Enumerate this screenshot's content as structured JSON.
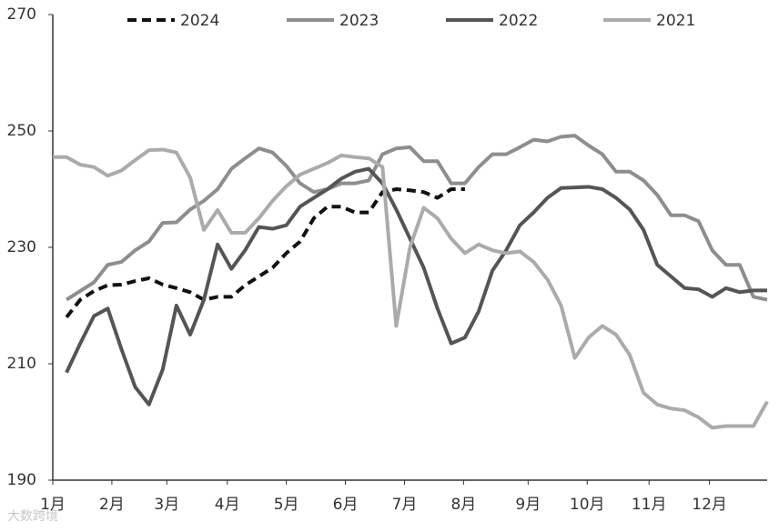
{
  "chart_data": {
    "type": "line",
    "x": [
      0,
      1,
      2,
      3,
      4,
      5,
      6,
      7,
      8,
      9,
      10,
      11,
      12,
      13,
      14,
      15,
      16,
      17,
      18,
      19,
      20,
      21,
      22,
      23,
      24,
      25,
      26,
      27,
      28,
      29,
      30,
      31,
      32,
      33,
      34,
      35,
      36,
      37,
      38,
      39,
      40,
      41,
      42,
      43,
      44,
      45,
      46,
      47,
      48,
      49,
      50,
      51,
      52
    ],
    "xlim": [
      0,
      52
    ],
    "xticks": [
      {
        "value": 0,
        "label": "1月"
      },
      {
        "value": 4.3,
        "label": "2月"
      },
      {
        "value": 8.3,
        "label": "3月"
      },
      {
        "value": 12.7,
        "label": "4月"
      },
      {
        "value": 17,
        "label": "5月"
      },
      {
        "value": 21.3,
        "label": "6月"
      },
      {
        "value": 25.6,
        "label": "7月"
      },
      {
        "value": 29.9,
        "label": "8月"
      },
      {
        "value": 34.6,
        "label": "9月"
      },
      {
        "value": 38.9,
        "label": "10月"
      },
      {
        "value": 43.4,
        "label": "11月"
      },
      {
        "value": 47.8,
        "label": "12月"
      }
    ],
    "ylim": [
      190,
      270
    ],
    "yticks": [
      190,
      210,
      230,
      250,
      270
    ],
    "legend": "top",
    "watermark": "大数跨境",
    "series": [
      {
        "name": "2024",
        "color": "#111111",
        "dashed": true,
        "values": [
          null,
          218,
          221,
          222.5,
          223.5,
          223.6,
          224.2,
          224.7,
          223.6,
          223,
          222.3,
          221,
          221.5,
          221.5,
          223.5,
          225,
          226.5,
          229,
          231,
          235,
          237,
          237,
          236,
          236,
          239.5,
          240,
          239.8,
          239.5,
          238.5,
          240,
          240,
          null,
          null,
          null,
          null,
          null,
          null,
          null,
          null,
          null,
          null,
          null,
          null,
          null,
          null,
          null,
          null,
          null,
          null,
          null,
          null,
          null,
          null
        ]
      },
      {
        "name": "2023",
        "color": "#8e8e8e",
        "dashed": false,
        "values": [
          null,
          221,
          222.5,
          224,
          227,
          227.5,
          229.5,
          231,
          234.2,
          234.3,
          236.5,
          238,
          240,
          243.5,
          245.3,
          247,
          246.3,
          244,
          241,
          239.5,
          240,
          241,
          241,
          241.5,
          246,
          247,
          247.2,
          244.8,
          244.8,
          241,
          241,
          243.8,
          246,
          246,
          247.2,
          248.5,
          248.2,
          249,
          249.2,
          247.5,
          246,
          243,
          243,
          241.5,
          239,
          235.5,
          235.5,
          234.5,
          229.5,
          227,
          227,
          221.5,
          221
        ]
      },
      {
        "name": "2022",
        "color": "#555555",
        "dashed": false,
        "values": [
          null,
          208.5,
          213.5,
          218.2,
          219.5,
          212.5,
          206,
          203,
          209,
          220,
          215,
          221,
          230.5,
          226.3,
          229.5,
          233.5,
          233.2,
          233.8,
          237,
          238.5,
          240,
          241.8,
          243,
          243.5,
          241,
          236.5,
          231.5,
          226.5,
          219.5,
          213.5,
          214.5,
          219,
          226,
          229.5,
          233.8,
          236,
          238.5,
          240.2,
          240.3,
          240.4,
          240,
          238.5,
          236.5,
          233,
          227,
          225,
          223,
          222.8,
          221.5,
          223,
          222.3,
          222.6,
          222.6
        ]
      },
      {
        "name": "2021",
        "color": "#ababab",
        "dashed": false,
        "values": [
          245.5,
          245.5,
          244.2,
          243.8,
          242.3,
          243.2,
          245,
          246.7,
          246.8,
          246.3,
          242,
          233,
          236.4,
          232.5,
          232.5,
          235,
          238,
          240.5,
          242.5,
          243.5,
          244.5,
          245.8,
          245.5,
          245.3,
          243.8,
          216.5,
          230,
          236.8,
          235,
          231.5,
          229,
          230.5,
          229.5,
          229,
          229.3,
          227.5,
          224.5,
          220,
          211,
          214.5,
          216.5,
          215,
          211.5,
          205,
          203,
          202.3,
          202,
          200.8,
          199,
          199.3,
          199.3,
          199.3,
          203.5
        ]
      }
    ]
  }
}
